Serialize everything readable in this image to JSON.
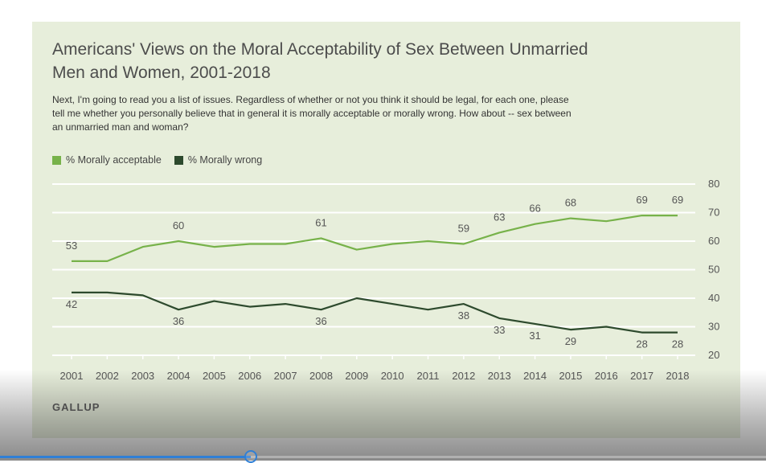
{
  "chart_data": {
    "type": "line",
    "title": "Americans' Views on the Moral Acceptability of Sex Between Unmarried Men and Women, 2001-2018",
    "subtitle": "Next, I'm going to read you a list of issues. Regardless of whether or not you think it should be legal, for each one, please tell me whether you personally believe that in general it is morally acceptable or morally wrong. How about -- sex between an unmarried man and woman?",
    "x": [
      2001,
      2002,
      2003,
      2004,
      2005,
      2006,
      2007,
      2008,
      2009,
      2010,
      2011,
      2012,
      2013,
      2014,
      2015,
      2016,
      2017,
      2018
    ],
    "series": [
      {
        "name": "% Morally acceptable",
        "color": "#77b24a",
        "values": [
          53,
          53,
          58,
          60,
          58,
          59,
          59,
          61,
          57,
          59,
          60,
          59,
          63,
          66,
          68,
          67,
          69,
          69
        ],
        "labels": {
          "2001": "53",
          "2004": "60",
          "2008": "61",
          "2012": "59",
          "2013": "63",
          "2014": "66",
          "2015": "68",
          "2017": "69",
          "2018": "69"
        }
      },
      {
        "name": "% Morally wrong",
        "color": "#2d4a2d",
        "values": [
          42,
          42,
          41,
          36,
          39,
          37,
          38,
          36,
          40,
          38,
          36,
          38,
          33,
          31,
          29,
          30,
          28,
          28
        ],
        "labels": {
          "2001": "42",
          "2004": "36",
          "2008": "36",
          "2012": "38",
          "2013": "33",
          "2014": "31",
          "2015": "29",
          "2017": "28",
          "2018": "28"
        }
      }
    ],
    "ylim": [
      20,
      80
    ],
    "yticks": [
      20,
      30,
      40,
      50,
      60,
      70,
      80
    ],
    "grid": true,
    "legend": "top-left"
  },
  "source": "GALLUP",
  "video_player": {
    "progress_fraction": 0.327
  }
}
